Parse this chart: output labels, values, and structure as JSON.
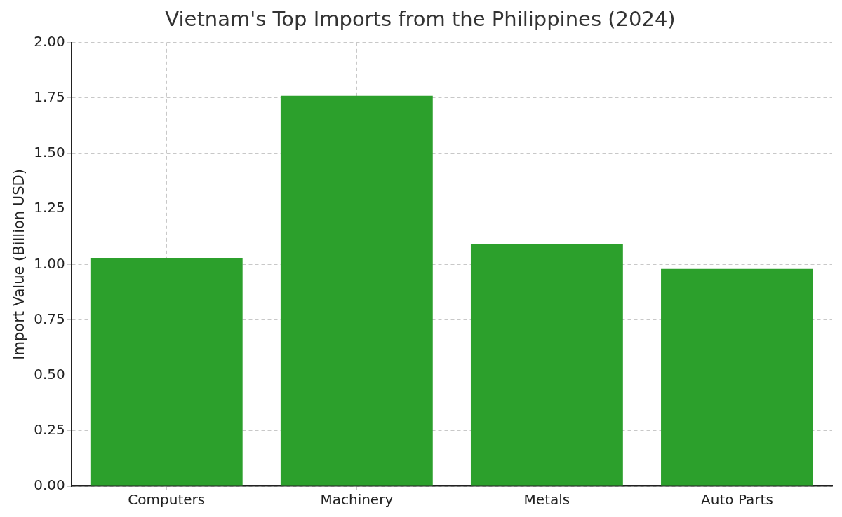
{
  "chart_data": {
    "type": "bar",
    "title": "Vietnam's Top Imports from the Philippines (2024)",
    "ylabel": "Import Value (Billion USD)",
    "categories": [
      "Computers",
      "Machinery",
      "Metals",
      "Auto Parts"
    ],
    "values": [
      1.03,
      1.76,
      1.09,
      0.98
    ],
    "color": "#2ca02c",
    "ylim": [
      0,
      2
    ],
    "yticks": [
      {
        "value": 0,
        "label": "0.00"
      },
      {
        "value": 0.25,
        "label": "0.25"
      },
      {
        "value": 0.5,
        "label": "0.50"
      },
      {
        "value": 0.75,
        "label": "0.75"
      },
      {
        "value": 1,
        "label": "1.00"
      },
      {
        "value": 1.25,
        "label": "1.25"
      },
      {
        "value": 1.5,
        "label": "1.50"
      },
      {
        "value": 1.75,
        "label": "1.75"
      },
      {
        "value": 2,
        "label": "2.00"
      }
    ],
    "grid": true
  }
}
